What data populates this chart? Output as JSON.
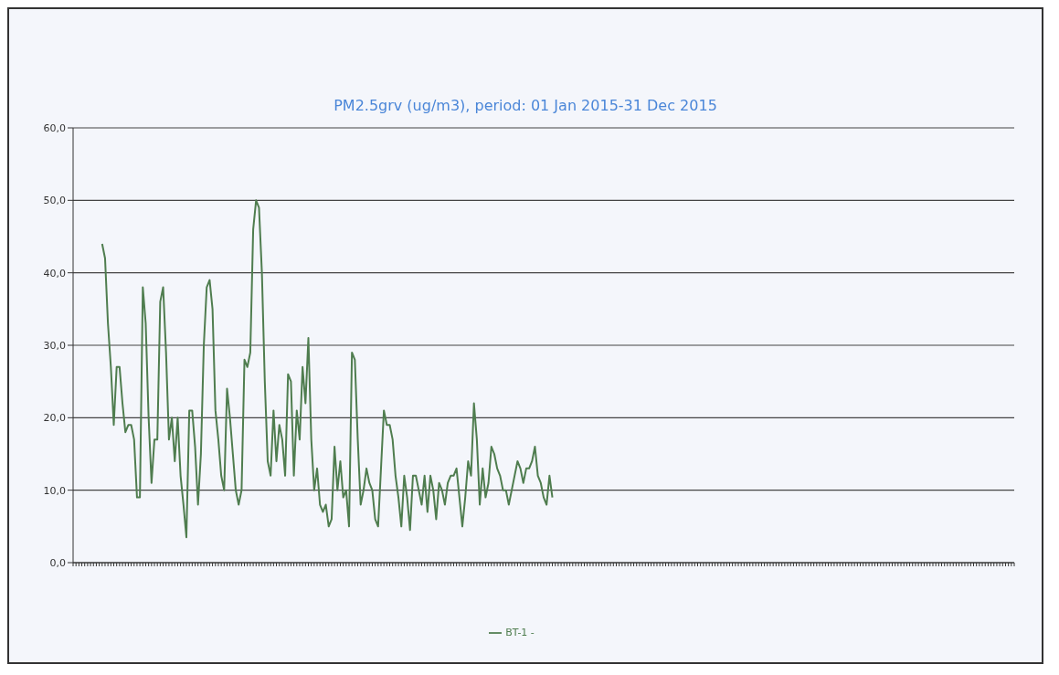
{
  "chart_data": {
    "type": "line",
    "title": "PM2.5grv (ug/m3), period: 01 Jan 2015-31 Dec 2015",
    "categories": [
      null,
      null,
      null,
      null,
      null,
      null,
      null,
      null,
      null,
      null,
      null,
      null,
      null,
      null,
      null,
      null,
      null,
      null,
      null,
      null,
      null,
      null,
      null,
      null,
      null,
      null,
      null,
      null,
      null,
      null,
      null,
      null,
      null,
      null,
      null,
      null,
      null,
      null,
      null,
      null,
      null,
      null,
      null,
      null,
      null,
      null,
      null,
      null,
      null,
      null,
      null,
      null,
      null,
      null,
      null,
      null,
      null,
      null,
      null,
      null,
      null,
      null,
      null,
      null,
      null,
      null,
      null,
      null,
      null,
      null,
      null,
      null,
      null,
      null,
      null,
      null,
      null,
      null,
      null,
      null,
      null,
      null,
      null,
      null,
      null,
      null,
      null,
      null,
      null,
      null,
      null,
      null,
      null,
      null,
      null,
      null,
      null,
      null,
      null,
      null,
      null,
      null,
      null,
      null,
      null,
      null,
      null,
      null,
      null,
      null,
      null,
      null,
      null,
      null,
      null,
      null,
      null,
      null,
      null,
      null,
      null,
      null,
      null,
      null,
      null,
      null,
      null,
      null,
      null,
      null,
      null,
      null,
      null,
      null,
      null,
      null,
      null,
      null,
      null,
      null,
      null,
      null,
      null,
      null,
      null,
      null,
      null,
      null,
      null,
      null,
      null,
      null,
      null,
      null,
      null,
      null,
      null,
      null,
      null,
      null,
      null,
      null,
      null,
      null,
      null,
      null,
      null,
      null,
      null,
      null,
      null,
      null,
      null,
      null,
      null,
      null,
      null,
      null,
      null,
      null,
      null,
      null,
      null,
      null,
      null,
      null,
      null,
      null,
      null,
      null,
      null,
      null,
      null,
      null,
      null,
      null,
      null,
      null,
      null,
      null,
      null,
      null,
      null,
      null,
      null,
      null,
      null,
      null,
      null,
      null,
      null,
      null,
      null,
      null,
      null,
      null,
      null,
      null,
      null,
      null,
      null,
      null,
      null,
      null,
      null,
      null,
      null,
      null,
      null,
      null,
      null,
      null,
      null,
      null,
      null,
      null,
      null,
      null,
      null,
      null,
      null,
      null,
      null,
      null,
      null,
      null,
      null,
      null,
      null,
      null,
      null,
      null,
      null,
      null,
      null,
      null,
      null,
      null,
      null,
      null,
      null,
      null,
      null,
      null,
      null,
      null,
      null,
      null,
      null,
      null,
      null,
      null,
      null,
      null,
      null,
      null,
      null,
      null,
      null,
      null,
      null,
      null,
      null,
      null,
      null,
      null,
      null,
      null,
      null,
      null,
      null,
      null,
      null,
      null,
      null,
      null,
      null,
      null,
      null,
      null,
      null,
      null,
      null,
      null,
      null,
      null,
      null,
      null,
      null,
      null,
      null,
      null,
      null,
      null,
      null,
      null,
      null,
      null,
      null,
      null,
      null,
      null,
      null,
      null,
      null
    ],
    "series": [
      {
        "name": "BT-1 -",
        "color": "#4f7d4f",
        "values": [
          null,
          null,
          null,
          null,
          null,
          null,
          null,
          null,
          null,
          null,
          44,
          42,
          33,
          27,
          19,
          27,
          27,
          22,
          18,
          19,
          19,
          17,
          9,
          9,
          38,
          33,
          20,
          11,
          17,
          17,
          36,
          38,
          29,
          17,
          20,
          14,
          20,
          12,
          8,
          3.5,
          21,
          21,
          16,
          8,
          15,
          30,
          38,
          39,
          35,
          21,
          17,
          12,
          10,
          24,
          20,
          15,
          10,
          8,
          10,
          28,
          27,
          29,
          46,
          50,
          49,
          40,
          25,
          14,
          12,
          21,
          14,
          19,
          17,
          12,
          26,
          25,
          12,
          21,
          17,
          27,
          22,
          31,
          17,
          10,
          13,
          8,
          7,
          8,
          5,
          6,
          16,
          10,
          14,
          9,
          10,
          5,
          29,
          28,
          17,
          8,
          10,
          13,
          11,
          10,
          6,
          5,
          13,
          21,
          19,
          19,
          17,
          12,
          9,
          5,
          12,
          9,
          4.5,
          12,
          12,
          10,
          8,
          12,
          7,
          12,
          10,
          6,
          11,
          10,
          8,
          11,
          12,
          12,
          13,
          9,
          5,
          9,
          14,
          12,
          22,
          17,
          8,
          13,
          9,
          11,
          16,
          15,
          13,
          12,
          10,
          10,
          8,
          10,
          12,
          14,
          13,
          11,
          13,
          13,
          14,
          16,
          12,
          11,
          9,
          8,
          12,
          9,
          null,
          null,
          null,
          null,
          null,
          null,
          null,
          null,
          null,
          null,
          null,
          null,
          null,
          null,
          null,
          null,
          null,
          null,
          null,
          null,
          null,
          null,
          null,
          null,
          null,
          null,
          null,
          null,
          null,
          null,
          null,
          null,
          null,
          null,
          null,
          null,
          null,
          null,
          null,
          null,
          null,
          null,
          null,
          null,
          null,
          null,
          null,
          null,
          null,
          null,
          null,
          null,
          null,
          null,
          null,
          null,
          null,
          null,
          null,
          null,
          null,
          null,
          null,
          null,
          null,
          null,
          null,
          null,
          null,
          null,
          null,
          null,
          null,
          null,
          null,
          null,
          null,
          null,
          null,
          null,
          null,
          null,
          null,
          null,
          null,
          null,
          null,
          null,
          null,
          null,
          null,
          null,
          null,
          null,
          null,
          null,
          null,
          null,
          null,
          null,
          null,
          null,
          null,
          null,
          null,
          null,
          null,
          null,
          null,
          null,
          null,
          null,
          null,
          null,
          null,
          null,
          null,
          null,
          null,
          null,
          null,
          null,
          null,
          null,
          null,
          null,
          null,
          null,
          null,
          null,
          null,
          null,
          null,
          null,
          null,
          null,
          null,
          null,
          null,
          null,
          null,
          null,
          null,
          null,
          null,
          null,
          null,
          null,
          null,
          null,
          null,
          null,
          null,
          null,
          null,
          null,
          null,
          null,
          null
        ]
      }
    ],
    "ylim": [
      0,
      60
    ],
    "yticks": [
      {
        "value": 0,
        "label": "0,0"
      },
      {
        "value": 10,
        "label": "10,0"
      },
      {
        "value": 20,
        "label": "20,0"
      },
      {
        "value": 30,
        "label": "30,0"
      },
      {
        "value": 40,
        "label": "40,0"
      },
      {
        "value": 50,
        "label": "50,0"
      },
      {
        "value": 60,
        "label": "60,0"
      }
    ],
    "grid": "y",
    "legend": "bottom",
    "tick_labels": "y",
    "marker": "none",
    "line_style": "solid"
  }
}
